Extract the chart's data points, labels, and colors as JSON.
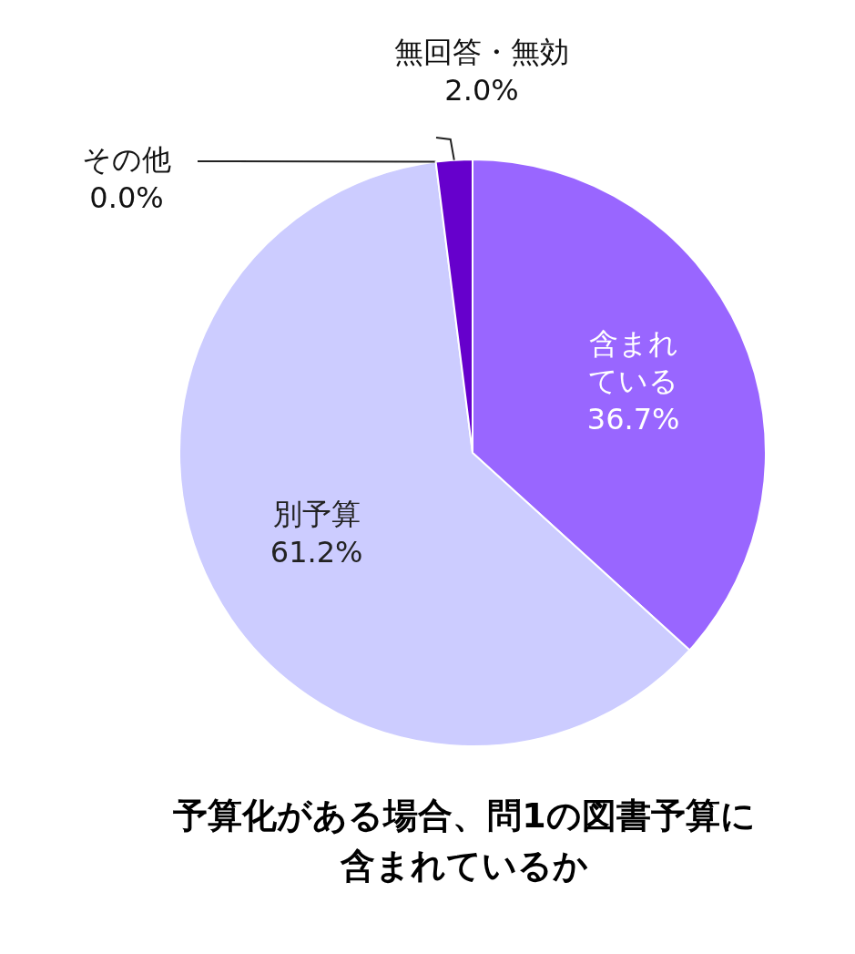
{
  "chart_data": {
    "type": "pie",
    "title": "予算化がある場合、問1の図書予算に含まれているか",
    "categories": [
      "含まれている",
      "別予算",
      "その他",
      "無回答・無効"
    ],
    "values": [
      36.7,
      61.2,
      0.0,
      2.0
    ],
    "value_labels": [
      "36.7%",
      "61.2%",
      "0.0%",
      "2.0%"
    ],
    "colors": [
      "#9966ff",
      "#ccccff",
      null,
      "#6600cc"
    ]
  }
}
